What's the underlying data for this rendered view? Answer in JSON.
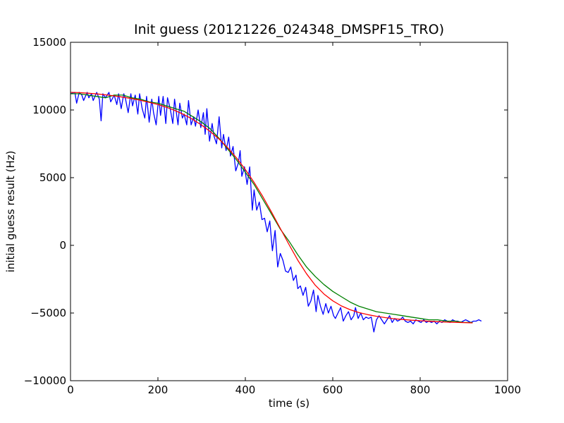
{
  "chart_data": {
    "type": "line",
    "title": "Init guess (20121226_024348_DMSPF15_TRO)",
    "xlabel": "time (s)",
    "ylabel": "initial guess result (Hz)",
    "xlim": [
      0,
      1000
    ],
    "ylim": [
      -10000,
      15000
    ],
    "xticks": [
      0,
      200,
      400,
      600,
      800,
      1000
    ],
    "yticks": [
      -10000,
      -5000,
      0,
      5000,
      10000,
      15000
    ],
    "xtick_labels": [
      "0",
      "200",
      "400",
      "600",
      "800",
      "1000"
    ],
    "ytick_labels": [
      "−10000",
      "−5000",
      "0",
      "5000",
      "10000",
      "15000"
    ],
    "grid": false,
    "series": [
      {
        "color": "#0000ff",
        "x": [
          0,
          10,
          14,
          20,
          26,
          30,
          38,
          42,
          48,
          52,
          60,
          66,
          70,
          74,
          80,
          88,
          92,
          100,
          106,
          110,
          116,
          122,
          126,
          132,
          138,
          142,
          148,
          154,
          158,
          164,
          170,
          174,
          180,
          186,
          190,
          196,
          202,
          206,
          212,
          218,
          222,
          228,
          234,
          238,
          246,
          250,
          256,
          260,
          266,
          270,
          276,
          282,
          286,
          292,
          298,
          304,
          308,
          312,
          318,
          324,
          328,
          334,
          340,
          346,
          350,
          356,
          362,
          366,
          372,
          378,
          384,
          388,
          392,
          398,
          404,
          410,
          416,
          420,
          426,
          432,
          438,
          444,
          450,
          456,
          462,
          468,
          474,
          480,
          486,
          492,
          498,
          504,
          510,
          516,
          520,
          526,
          532,
          538,
          544,
          550,
          556,
          562,
          566,
          572,
          578,
          584,
          590,
          596,
          602,
          606,
          612,
          618,
          624,
          630,
          636,
          642,
          648,
          652,
          658,
          664,
          670,
          676,
          682,
          688,
          694,
          700,
          706,
          712,
          718,
          724,
          730,
          736,
          742,
          748,
          754,
          760,
          766,
          772,
          778,
          784,
          790,
          796,
          802,
          808,
          814,
          820,
          826,
          832,
          838,
          844,
          850,
          856,
          862,
          868,
          874,
          880,
          886,
          892,
          898,
          904,
          910,
          916,
          922,
          928,
          934,
          940
        ],
        "y": [
          11200,
          11300,
          10500,
          11300,
          11100,
          10700,
          11300,
          10900,
          11200,
          10700,
          11300,
          10800,
          9200,
          11200,
          10900,
          11300,
          10600,
          11100,
          10400,
          11200,
          10100,
          11200,
          10800,
          9800,
          11200,
          10300,
          11100,
          9700,
          11200,
          10100,
          9400,
          11000,
          9100,
          10800,
          9800,
          8900,
          11000,
          9600,
          11000,
          9000,
          10900,
          10100,
          9000,
          10800,
          8900,
          10500,
          9400,
          9700,
          8900,
          10700,
          8900,
          9500,
          8800,
          10000,
          8700,
          9800,
          8200,
          10100,
          7700,
          9000,
          8100,
          7500,
          9500,
          7200,
          8200,
          7000,
          8000,
          6600,
          7300,
          5500,
          6100,
          7000,
          5100,
          5800,
          4500,
          5800,
          2600,
          4100,
          2600,
          3200,
          1900,
          2000,
          1000,
          1800,
          -400,
          1100,
          -1600,
          -600,
          -1100,
          -1900,
          -2000,
          -1600,
          -2600,
          -2200,
          -3200,
          -3000,
          -3700,
          -3100,
          -4500,
          -4100,
          -3300,
          -4900,
          -3700,
          -4500,
          -5100,
          -4300,
          -5000,
          -4500,
          -5200,
          -5400,
          -5000,
          -4600,
          -5600,
          -5200,
          -4900,
          -5500,
          -5200,
          -4600,
          -5400,
          -5000,
          -5500,
          -5300,
          -5400,
          -5300,
          -6400,
          -5500,
          -5200,
          -5500,
          -5800,
          -5500,
          -5200,
          -5700,
          -5400,
          -5600,
          -5500,
          -5300,
          -5600,
          -5700,
          -5600,
          -5800,
          -5500,
          -5600,
          -5700,
          -5500,
          -5700,
          -5600,
          -5700,
          -5600,
          -5800,
          -5600,
          -5700,
          -5500,
          -5600,
          -5700,
          -5500,
          -5600,
          -5600,
          -5700,
          -5600,
          -5500,
          -5600,
          -5700,
          -5600,
          -5600,
          -5500,
          -5600
        ]
      },
      {
        "color": "#008000",
        "x": [
          0,
          20,
          40,
          60,
          80,
          100,
          120,
          140,
          160,
          180,
          200,
          220,
          240,
          260,
          280,
          300,
          320,
          340,
          360,
          380,
          400,
          420,
          440,
          460,
          480,
          500,
          520,
          540,
          560,
          580,
          600,
          620,
          640,
          660,
          680,
          700,
          720,
          740,
          760,
          780,
          800,
          820,
          840,
          860,
          880,
          900,
          920
        ],
        "y": [
          11200,
          11200,
          11100,
          11000,
          10900,
          11100,
          11100,
          10900,
          10800,
          10600,
          10500,
          10300,
          10100,
          9900,
          9500,
          9100,
          8600,
          7900,
          7100,
          6300,
          5400,
          4500,
          3400,
          2300,
          1200,
          300,
          -700,
          -1600,
          -2300,
          -2900,
          -3400,
          -3800,
          -4200,
          -4500,
          -4700,
          -4900,
          -5000,
          -5100,
          -5200,
          -5300,
          -5400,
          -5500,
          -5500,
          -5600,
          -5600,
          -5700,
          -5700
        ]
      },
      {
        "color": "#ff0000",
        "x": [
          0,
          20,
          40,
          60,
          80,
          100,
          120,
          140,
          160,
          180,
          200,
          220,
          240,
          260,
          280,
          300,
          320,
          340,
          360,
          380,
          400,
          420,
          440,
          460,
          480,
          500,
          520,
          540,
          560,
          580,
          600,
          620,
          640,
          660,
          680,
          700,
          720,
          740,
          760,
          780,
          800,
          820,
          840,
          860,
          880,
          900,
          920
        ],
        "y": [
          11300,
          11280,
          11240,
          11190,
          11120,
          11040,
          10950,
          10840,
          10720,
          10570,
          10400,
          10200,
          9950,
          9650,
          9300,
          8880,
          8400,
          7850,
          7200,
          6450,
          5600,
          4650,
          3600,
          2450,
          1250,
          50,
          -1100,
          -2100,
          -2950,
          -3600,
          -4100,
          -4480,
          -4760,
          -4970,
          -5120,
          -5240,
          -5340,
          -5420,
          -5480,
          -5530,
          -5570,
          -5610,
          -5640,
          -5670,
          -5690,
          -5710,
          -5730
        ]
      }
    ]
  }
}
